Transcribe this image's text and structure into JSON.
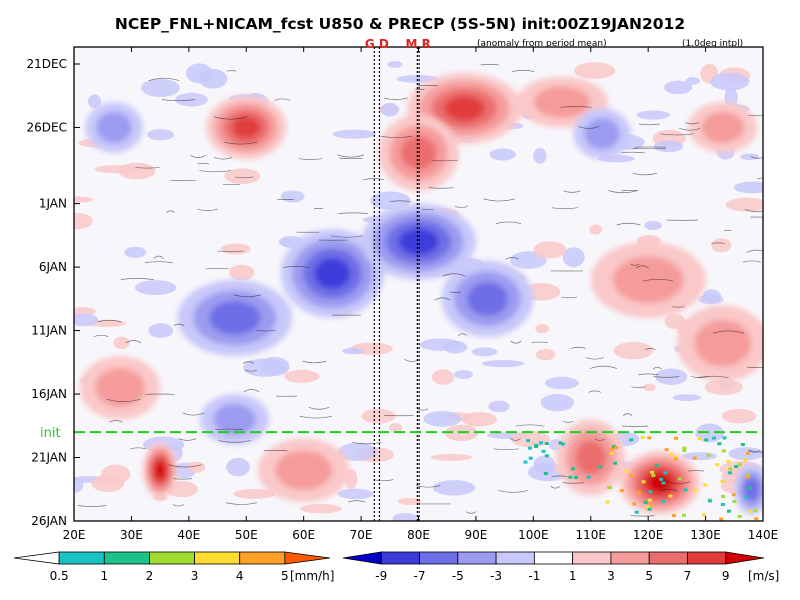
{
  "chart_data": {
    "type": "heatmap",
    "title": "NCEP_FNL+NICAM_fcst U850 & PRECP (5S-5N) init:00Z19JAN2012",
    "subtitle_left": "(anomaly from period mean)",
    "subtitle_right": "(1.0deg intpl)",
    "x_ticks": [
      "20E",
      "30E",
      "40E",
      "50E",
      "60E",
      "70E",
      "80E",
      "90E",
      "100E",
      "110E",
      "120E",
      "130E",
      "140E"
    ],
    "x_range": [
      20,
      140
    ],
    "y_ticks": [
      "21DEC",
      "26DEC",
      "1JAN",
      "6JAN",
      "11JAN",
      "16JAN",
      "21JAN",
      "26JAN"
    ],
    "y_range_days": [
      0,
      36
    ],
    "init_label": "init",
    "init_day": 29,
    "marker_lines": [
      {
        "label": "G",
        "lon": 72.3
      },
      {
        "label": "D",
        "lon": 73.2
      },
      {
        "label": "M",
        "lon": 79.8
      },
      {
        "label": "R",
        "lon": 80.1
      }
    ],
    "regions_u850": [
      {
        "lon": 50,
        "day": 5,
        "value": 8,
        "sx": 7,
        "sy": 2.5
      },
      {
        "lon": 88,
        "day": 3.5,
        "value": 8,
        "sx": 10,
        "sy": 2.8
      },
      {
        "lon": 80,
        "day": 7,
        "value": 6,
        "sx": 7,
        "sy": 3
      },
      {
        "lon": 105,
        "day": 3,
        "value": 3,
        "sx": 8,
        "sy": 2
      },
      {
        "lon": 133,
        "day": 5,
        "value": 3,
        "sx": 6,
        "sy": 2
      },
      {
        "lon": 27,
        "day": 5,
        "value": -4,
        "sx": 5,
        "sy": 2
      },
      {
        "lon": 112,
        "day": 5.5,
        "value": -3,
        "sx": 5,
        "sy": 2
      },
      {
        "lon": 65,
        "day": 16.5,
        "value": -8,
        "sx": 9,
        "sy": 3.5
      },
      {
        "lon": 80,
        "day": 14,
        "value": -7,
        "sx": 10,
        "sy": 3
      },
      {
        "lon": 48,
        "day": 20,
        "value": -5,
        "sx": 10,
        "sy": 3
      },
      {
        "lon": 92,
        "day": 18.5,
        "value": -5,
        "sx": 8,
        "sy": 3
      },
      {
        "lon": 120,
        "day": 17,
        "value": 4,
        "sx": 10,
        "sy": 3
      },
      {
        "lon": 133,
        "day": 22,
        "value": 4,
        "sx": 8,
        "sy": 3
      },
      {
        "lon": 28,
        "day": 25.5,
        "value": 4,
        "sx": 7,
        "sy": 2.5
      },
      {
        "lon": 48,
        "day": 28,
        "value": -3,
        "sx": 6,
        "sy": 2
      },
      {
        "lon": 35,
        "day": 32,
        "value": 9,
        "sx": 3,
        "sy": 2.2
      },
      {
        "lon": 122,
        "day": 33,
        "value": 9,
        "sx": 7,
        "sy": 2.5
      },
      {
        "lon": 110,
        "day": 31,
        "value": 5,
        "sx": 6,
        "sy": 3
      },
      {
        "lon": 60,
        "day": 32,
        "value": 3,
        "sx": 8,
        "sy": 2.5
      },
      {
        "lon": 138,
        "day": 33.5,
        "value": -5,
        "sx": 3,
        "sy": 2
      }
    ],
    "precip_legend": {
      "labels": [
        "0.5",
        "1",
        "2",
        "3",
        "4",
        "5"
      ],
      "colors": [
        "#ffffff",
        "#19c3c3",
        "#19c38a",
        "#a0dc32",
        "#ffdc32",
        "#ffa028",
        "#ff5a00"
      ],
      "unit": "[mm/h]"
    },
    "u850_legend": {
      "labels": [
        "-9",
        "-7",
        "-5",
        "-3",
        "-1",
        "1",
        "3",
        "5",
        "7",
        "9"
      ],
      "colors": [
        "#0000c8",
        "#3c3cdc",
        "#6e6ee6",
        "#9b9bf0",
        "#c8c8fa",
        "#ffffff",
        "#fac8c8",
        "#f59b9b",
        "#eb6e6e",
        "#e13c3c",
        "#d20000"
      ],
      "unit": "[m/s]"
    }
  }
}
